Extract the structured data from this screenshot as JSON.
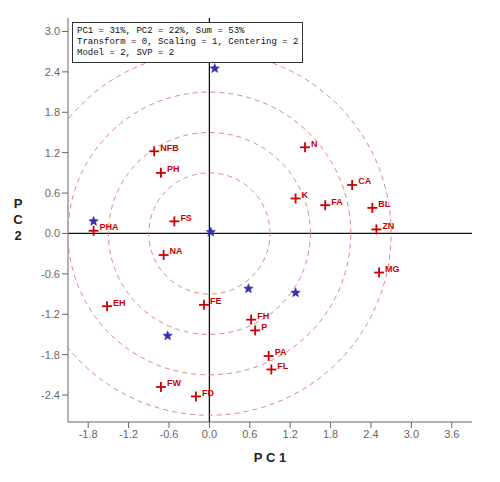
{
  "chart_data": {
    "type": "scatter",
    "annotation": "PC1 = 31%, PC2 = 22%, Sum = 53%\nTransform = 0, Scaling = 1, Centering = 2\nModel = 2, SVP = 2",
    "xlabel": "P C 1",
    "ylabel": "P\nC\n2",
    "xlim": [
      -2.1,
      3.9
    ],
    "ylim": [
      -2.8,
      3.2
    ],
    "xticks": [
      -1.8,
      -1.2,
      -0.6,
      {
        "value": 0.0,
        "label": "0.0"
      },
      0.6,
      1.2,
      1.8,
      2.4,
      {
        "value": 3.0,
        "label": "3.0"
      },
      3.6
    ],
    "yticks": [
      -2.4,
      -1.8,
      -1.2,
      -0.6,
      {
        "value": 0.0,
        "label": "0.0"
      },
      0.6,
      1.2,
      1.8,
      2.4,
      {
        "value": 3.0,
        "label": "3.0"
      }
    ],
    "grid": false,
    "series": [
      {
        "type": "scatter",
        "marker": "plus",
        "color": "#cc0000",
        "labels": [
          "NFB",
          "PH",
          "FS",
          "PHA",
          "NA",
          "EH",
          "FW",
          "FD",
          "FE",
          "FH",
          "P",
          "PA",
          "FL",
          "N",
          "CA",
          "K",
          "FA",
          "BL",
          "ZN",
          "MG"
        ],
        "x": [
          -0.82,
          -0.72,
          -0.52,
          -1.72,
          -0.68,
          -1.52,
          -0.72,
          -0.2,
          -0.08,
          0.62,
          0.68,
          0.88,
          0.92,
          1.42,
          2.12,
          1.28,
          1.72,
          2.42,
          2.48,
          2.52
        ],
        "y": [
          1.22,
          0.9,
          0.18,
          0.04,
          -0.32,
          -1.08,
          -2.28,
          -2.42,
          -1.06,
          -1.28,
          -1.44,
          -1.82,
          -2.02,
          1.28,
          0.72,
          0.52,
          0.42,
          0.38,
          0.06,
          -0.58
        ]
      },
      {
        "type": "scatter",
        "marker": "star",
        "color": "#3333aa",
        "x": [
          0.08,
          -1.72,
          0.02,
          0.58,
          1.28,
          -0.62
        ],
        "y": [
          2.45,
          0.18,
          0.02,
          -0.82,
          -0.88,
          -1.52
        ]
      }
    ],
    "circles": {
      "radii": [
        0.9,
        1.5,
        2.1,
        2.7
      ],
      "color": "#e08888",
      "line_style": "dashed"
    },
    "axis_lines": {
      "x": 0,
      "y": 0,
      "color": "#111111"
    }
  }
}
